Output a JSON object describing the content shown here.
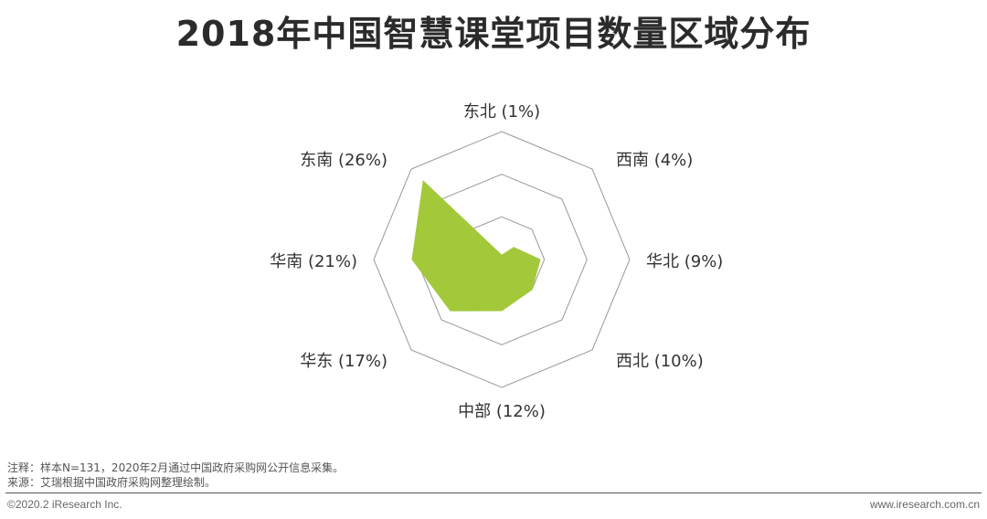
{
  "title": "2018年中国智慧课堂项目数量区域分布",
  "chart_data": {
    "type": "radar",
    "title": "2018年中国智慧课堂项目数量区域分布",
    "categories": [
      "东北",
      "西南",
      "华北",
      "西北",
      "中部",
      "华东",
      "华南",
      "东南"
    ],
    "values": [
      1,
      4,
      9,
      10,
      12,
      17,
      21,
      26
    ],
    "category_labels": [
      "东北 (1%)",
      "西南 (4%)",
      "华北 (9%)",
      "西北 (10%)",
      "中部 (12%)",
      "华东 (17%)",
      "华南 (21%)",
      "东南 (26%)"
    ],
    "unit": "%",
    "rlim": [
      0,
      30
    ],
    "grid_rings": 3,
    "fill_color": "#a3c93a",
    "grid_color": "#999999"
  },
  "notes": {
    "note": "注释：样本N=131，2020年2月通过中国政府采购网公开信息采集。",
    "source": "来源：艾瑞根据中国政府采购网整理绘制。"
  },
  "footer": {
    "copyright": "©2020.2 iResearch Inc.",
    "website": "www.iresearch.com.cn"
  }
}
